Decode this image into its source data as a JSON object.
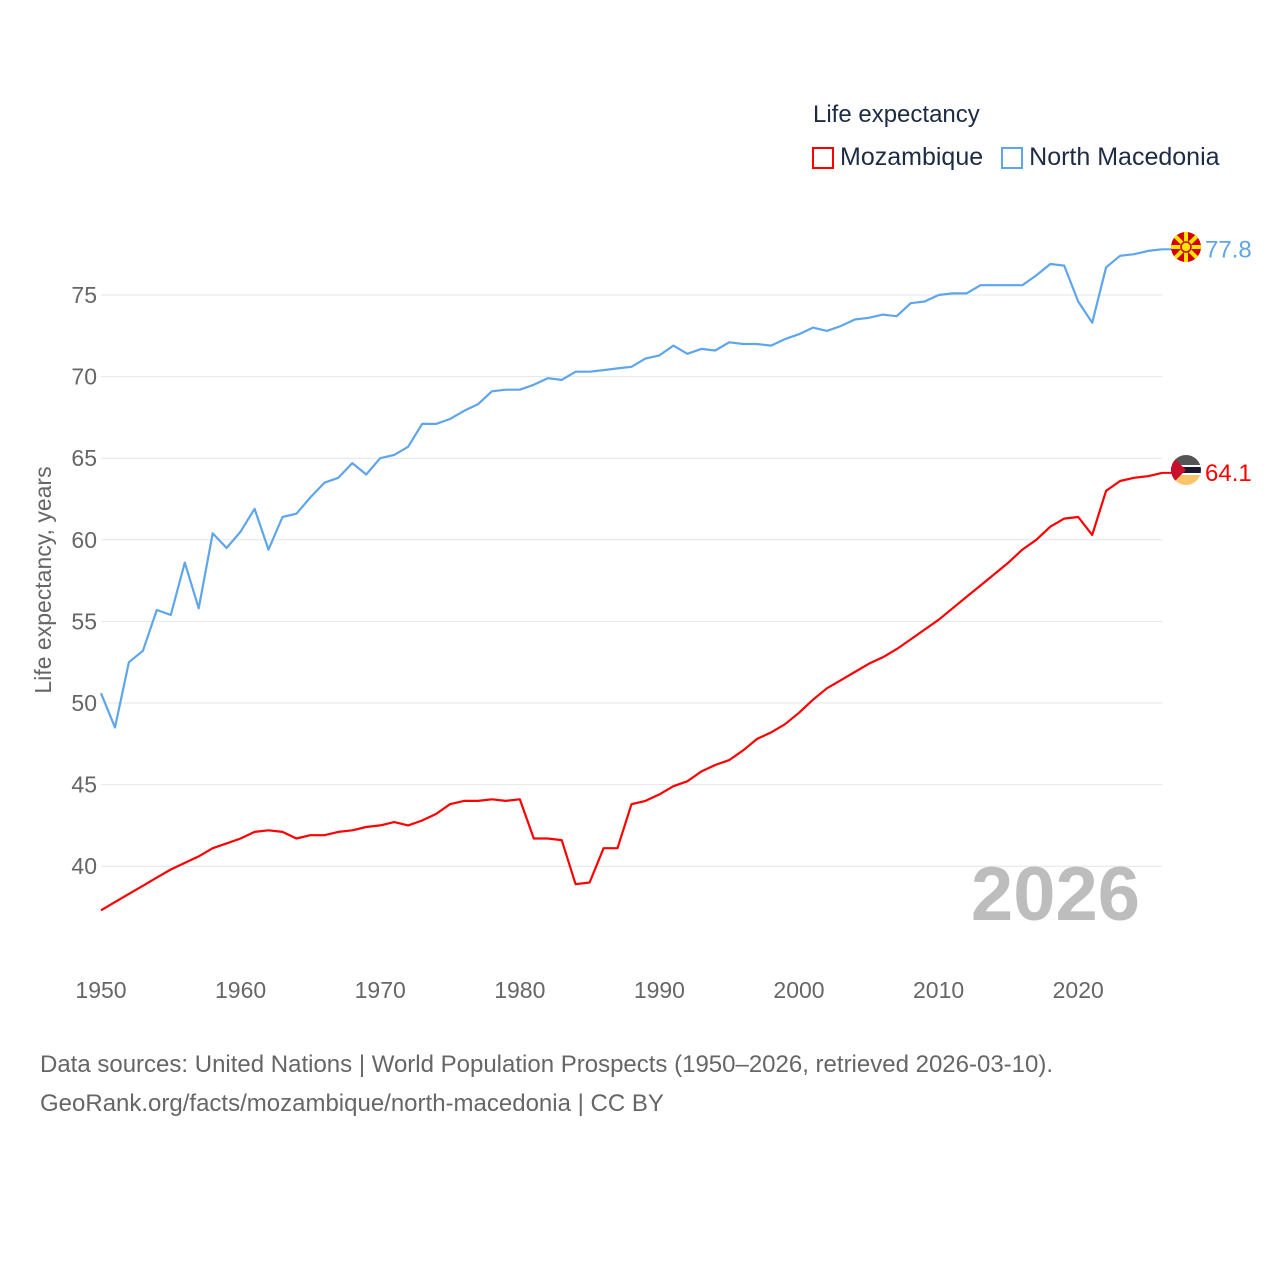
{
  "chart_data": {
    "type": "line",
    "title": "Life expectancy",
    "xlabel": "",
    "ylabel": "Life expectancy, years",
    "xlim": [
      1950,
      2026
    ],
    "ylim": [
      35,
      79
    ],
    "grid": true,
    "legend_position": "top-right",
    "x_ticks": [
      "1950",
      "1960",
      "1970",
      "1980",
      "1990",
      "2000",
      "2010",
      "2020"
    ],
    "y_ticks": [
      "40",
      "45",
      "50",
      "55",
      "60",
      "65",
      "70",
      "75"
    ],
    "year_label": "2026",
    "x": [
      1950,
      1951,
      1952,
      1953,
      1954,
      1955,
      1956,
      1957,
      1958,
      1959,
      1960,
      1961,
      1962,
      1963,
      1964,
      1965,
      1966,
      1967,
      1968,
      1969,
      1970,
      1971,
      1972,
      1973,
      1974,
      1975,
      1976,
      1977,
      1978,
      1979,
      1980,
      1981,
      1982,
      1983,
      1984,
      1985,
      1986,
      1987,
      1988,
      1989,
      1990,
      1991,
      1992,
      1993,
      1994,
      1995,
      1996,
      1997,
      1998,
      1999,
      2000,
      2001,
      2002,
      2003,
      2004,
      2005,
      2006,
      2007,
      2008,
      2009,
      2010,
      2011,
      2012,
      2013,
      2014,
      2015,
      2016,
      2017,
      2018,
      2019,
      2020,
      2021,
      2022,
      2023,
      2024,
      2025,
      2026
    ],
    "series": [
      {
        "name": "Mozambique",
        "color": "#ff0000",
        "end_label": "64.1",
        "values": [
          37.3,
          37.8,
          38.3,
          38.8,
          39.3,
          39.8,
          40.2,
          40.6,
          41.1,
          41.4,
          41.7,
          42.1,
          42.2,
          42.1,
          41.7,
          41.9,
          41.9,
          42.1,
          42.2,
          42.4,
          42.5,
          42.7,
          42.5,
          42.8,
          43.2,
          43.8,
          44.0,
          44.0,
          44.1,
          44.0,
          44.1,
          41.7,
          41.7,
          41.6,
          38.9,
          39.0,
          41.1,
          41.1,
          43.8,
          44.0,
          44.4,
          44.9,
          45.2,
          45.8,
          46.2,
          46.5,
          47.1,
          47.8,
          48.2,
          48.7,
          49.4,
          50.2,
          50.9,
          51.4,
          51.9,
          52.4,
          52.8,
          53.3,
          53.9,
          54.5,
          55.1,
          55.8,
          56.5,
          57.2,
          57.9,
          58.6,
          59.4,
          60.0,
          60.8,
          61.3,
          61.4,
          60.3,
          63.0,
          63.6,
          63.8,
          63.9,
          64.1
        ]
      },
      {
        "name": "North Macedonia",
        "color": "#5ea5ec",
        "end_label": "77.8",
        "values": [
          50.6,
          48.5,
          52.5,
          53.2,
          55.7,
          55.4,
          58.6,
          55.8,
          60.4,
          59.5,
          60.5,
          61.9,
          59.4,
          61.4,
          61.6,
          62.6,
          63.5,
          63.8,
          64.7,
          64.0,
          65.0,
          65.2,
          65.7,
          67.1,
          67.1,
          67.4,
          67.9,
          68.3,
          69.1,
          69.2,
          69.2,
          69.5,
          69.9,
          69.8,
          70.3,
          70.3,
          70.4,
          70.5,
          70.6,
          71.1,
          71.3,
          71.9,
          71.4,
          71.7,
          71.6,
          72.1,
          72.0,
          72.0,
          71.9,
          72.3,
          72.6,
          73.0,
          72.8,
          73.1,
          73.5,
          73.6,
          73.8,
          73.7,
          74.5,
          74.6,
          75.0,
          75.1,
          75.1,
          75.6,
          75.6,
          75.6,
          75.6,
          76.2,
          76.9,
          76.8,
          74.6,
          73.3,
          76.7,
          77.4,
          77.5,
          77.7,
          77.8
        ]
      }
    ]
  },
  "source": {
    "line1": "Data sources: United Nations | World Population Prospects (1950–2026, retrieved 2026-03-10).",
    "line2": "GeoRank.org/facts/mozambique/north-macedonia | CC BY"
  }
}
